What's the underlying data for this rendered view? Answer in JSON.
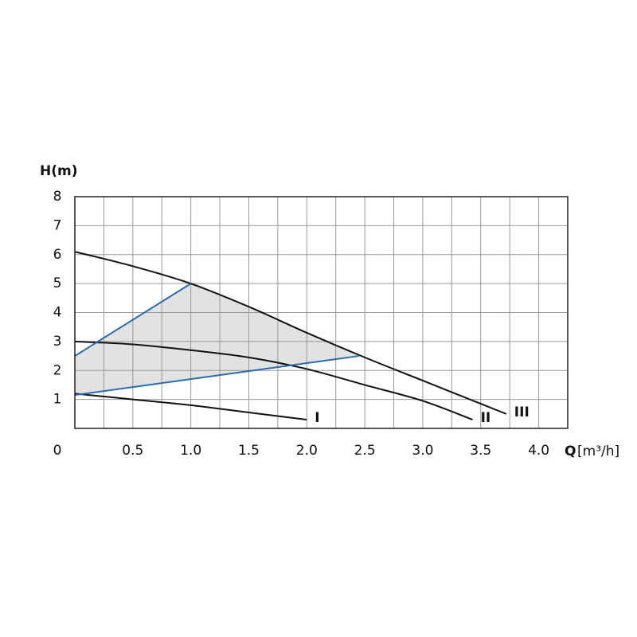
{
  "chart_data": {
    "type": "line",
    "y_label": "H(m)",
    "x_label_main": "Q",
    "x_label_unit": "[m³/h]",
    "xlim": [
      0,
      4.25
    ],
    "ylim": [
      0,
      8
    ],
    "xticks": [
      {
        "value": 0,
        "label": "0"
      },
      0.5,
      {
        "value": 1,
        "label": "1.0"
      },
      1.5,
      {
        "value": 2,
        "label": "2.0"
      },
      2.5,
      {
        "value": 3,
        "label": "3.0"
      },
      3.5,
      {
        "value": 4,
        "label": "4.0"
      }
    ],
    "x_minor_ticks": [
      0.25,
      0.75,
      1.25,
      1.75,
      2.25,
      2.75,
      3.25,
      3.75,
      4.25
    ],
    "yticks": [
      1,
      2,
      3,
      4,
      5,
      6,
      7,
      8
    ],
    "grid": true,
    "region_color": "#e2e2e2",
    "series": [
      {
        "name": "I",
        "color": "#111111",
        "x": [
          0,
          0.5,
          1.0,
          1.5,
          2.0
        ],
        "values": [
          1.2,
          1.0,
          0.8,
          0.55,
          0.3
        ]
      },
      {
        "name": "II",
        "color": "#111111",
        "x": [
          0,
          0.5,
          1.0,
          1.5,
          2.0,
          2.5,
          3.0,
          3.43
        ],
        "values": [
          3.0,
          2.9,
          2.7,
          2.45,
          2.05,
          1.5,
          0.95,
          0.3
        ]
      },
      {
        "name": "III",
        "color": "#111111",
        "x": [
          0,
          0.5,
          1.0,
          1.5,
          2.0,
          2.5,
          3.0,
          3.5,
          3.72
        ],
        "values": [
          6.1,
          5.6,
          5.0,
          4.2,
          3.3,
          2.45,
          1.65,
          0.85,
          0.5
        ]
      },
      {
        "color": "#2a6ab0",
        "x": [
          0,
          1.0
        ],
        "values": [
          2.5,
          5.0
        ]
      },
      {
        "color": "#2a6ab0",
        "x": [
          0,
          2.45
        ],
        "values": [
          1.15,
          2.5
        ]
      }
    ]
  }
}
